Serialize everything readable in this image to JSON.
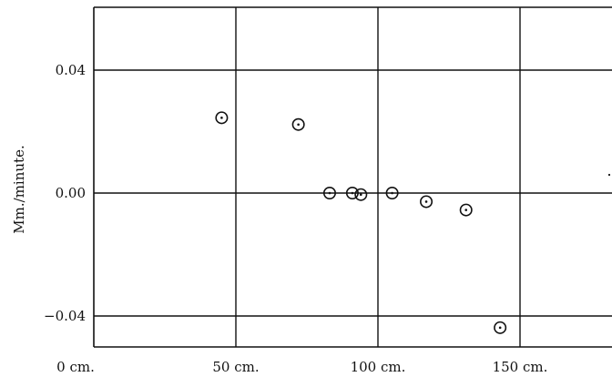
{
  "chart_data": {
    "type": "scatter",
    "title": "",
    "ylabel": "Mm./minute.",
    "xlabel": "",
    "xlim": [
      0,
      200
    ],
    "ylim": [
      -0.052,
      0.062
    ],
    "grid": true,
    "x_ticks": [
      {
        "value": 0,
        "label": "0 cm."
      },
      {
        "value": 50,
        "label": "50 cm."
      },
      {
        "value": 100,
        "label": "100 cm."
      },
      {
        "value": 150,
        "label": "150 cm."
      }
    ],
    "x_gridlines": [
      50,
      100,
      150
    ],
    "y_ticks": [
      {
        "value": 0.04,
        "label": "0.04"
      },
      {
        "value": 0.0,
        "label": "0.00"
      },
      {
        "value": -0.04,
        "label": "−0.04"
      }
    ],
    "series": [
      {
        "marker": "circle-dot",
        "points": [
          {
            "x": 45,
            "y": 0.0245
          },
          {
            "x": 72,
            "y": 0.0223
          },
          {
            "x": 83,
            "y": 0.0
          },
          {
            "x": 91,
            "y": 0.0
          },
          {
            "x": 94,
            "y": -0.0005
          },
          {
            "x": 105,
            "y": 0.0
          },
          {
            "x": 117,
            "y": -0.0028
          },
          {
            "x": 131,
            "y": -0.0055
          },
          {
            "x": 143,
            "y": -0.0438
          }
        ]
      }
    ],
    "colors": {
      "ink": "#111111",
      "background": "#ffffff"
    }
  }
}
